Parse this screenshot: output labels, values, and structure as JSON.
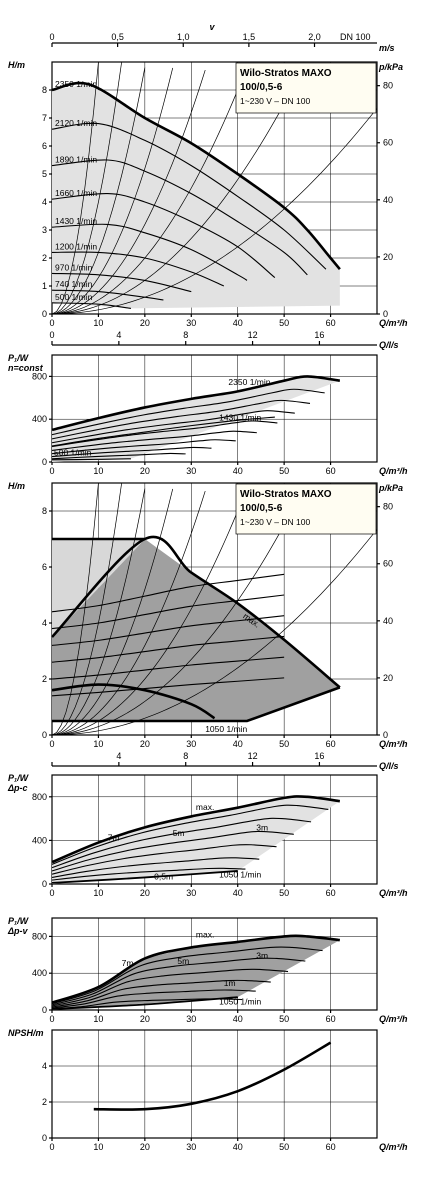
{
  "pump": {
    "title_line1": "Wilo-Stratos MAXO",
    "title_line2": "100/0,5-6",
    "subtitle": "1~230 V – DN 100"
  },
  "units": {
    "v_top": "v",
    "v_unit": "m/s",
    "dn": "DN 100",
    "H": "H/m",
    "p": "p/kPa",
    "Q": "Q/m³/h",
    "Qls": "Q/l/s",
    "P1": "P₁/W",
    "nconst": "n=const",
    "dpc": "Δp-c",
    "dpv": "Δp-v",
    "NPSH": "NPSH/m"
  },
  "chart_data": [
    {
      "id": "H-Q n=const",
      "type": "line",
      "xlabel": "Q/m³/h",
      "ylabel": "H/m",
      "y2label": "p/kPa",
      "xlim": [
        0,
        70
      ],
      "ylim": [
        0,
        9
      ],
      "x_ticks": [
        0,
        10,
        20,
        30,
        40,
        50,
        60
      ],
      "y_ticks": [
        0,
        1,
        2,
        3,
        4,
        5,
        6,
        7,
        8
      ],
      "y2_ticks": [
        0,
        20,
        40,
        60,
        80
      ],
      "top_axis_v_ticks": [
        "0",
        "0,5",
        "1,0",
        "1,5",
        "2,0"
      ],
      "series": [
        {
          "name": "2350 1/min",
          "x": [
            0,
            8,
            20,
            30,
            40,
            50,
            55,
            60,
            62
          ],
          "values": [
            8.0,
            8.2,
            7.0,
            6.1,
            5.0,
            3.8,
            3.0,
            2.0,
            1.6
          ]
        },
        {
          "name": "2120 1/min",
          "x": [
            0,
            10,
            20,
            30,
            40,
            50,
            59
          ],
          "values": [
            6.6,
            6.8,
            6.2,
            5.3,
            4.2,
            3.0,
            1.6
          ]
        },
        {
          "name": "1890 1/min",
          "x": [
            0,
            12,
            20,
            30,
            40,
            50,
            55
          ],
          "values": [
            5.3,
            5.5,
            5.1,
            4.3,
            3.3,
            2.2,
            1.4
          ]
        },
        {
          "name": "1660 1/min",
          "x": [
            0,
            12,
            20,
            30,
            40,
            48
          ],
          "values": [
            4.1,
            4.3,
            4.0,
            3.3,
            2.4,
            1.3
          ]
        },
        {
          "name": "1430 1/min",
          "x": [
            0,
            12,
            20,
            30,
            40,
            42
          ],
          "values": [
            3.1,
            3.2,
            2.9,
            2.3,
            1.4,
            1.2
          ]
        },
        {
          "name": "1200 1/min",
          "x": [
            0,
            10,
            20,
            30,
            37
          ],
          "values": [
            2.2,
            2.2,
            2.0,
            1.5,
            1.0
          ]
        },
        {
          "name": "970 1/min",
          "x": [
            0,
            10,
            20,
            30
          ],
          "values": [
            1.45,
            1.4,
            1.2,
            0.8
          ]
        },
        {
          "name": "740 1/min",
          "x": [
            0,
            10,
            20,
            24
          ],
          "values": [
            0.85,
            0.8,
            0.6,
            0.5
          ]
        },
        {
          "name": "500 1/min",
          "x": [
            0,
            10,
            17
          ],
          "values": [
            0.4,
            0.35,
            0.2
          ]
        }
      ]
    },
    {
      "id": "P1-Q n=const",
      "type": "line",
      "xlabel": "Q/m³/h",
      "ylabel": "P₁/W",
      "xlim": [
        0,
        70
      ],
      "ylim": [
        0,
        1000
      ],
      "x_ticks": [
        0,
        10,
        20,
        30,
        40,
        50,
        60
      ],
      "y_ticks": [
        0,
        400,
        800
      ],
      "top_axis_ls_ticks": [
        "0",
        "4",
        "8",
        "12",
        "16"
      ],
      "series": [
        {
          "name": "2350 1/min",
          "x": [
            0,
            10,
            20,
            30,
            40,
            50,
            55,
            62
          ],
          "values": [
            300,
            410,
            510,
            590,
            660,
            760,
            800,
            760
          ]
        },
        {
          "name": "1430 1/min",
          "x": [
            0,
            10,
            20,
            30,
            40,
            48
          ],
          "values": [
            150,
            220,
            280,
            340,
            390,
            420
          ]
        },
        {
          "name": "500 1/min",
          "x": [
            0,
            10,
            17
          ],
          "values": [
            20,
            25,
            30
          ]
        }
      ]
    },
    {
      "id": "H-Q control range",
      "type": "area",
      "xlabel": "Q/m³/h",
      "ylabel": "H/m",
      "y2label": "p/kPa",
      "xlim": [
        0,
        70
      ],
      "ylim": [
        0,
        9
      ],
      "x_ticks": [
        0,
        10,
        20,
        30,
        40,
        50,
        60
      ],
      "y_ticks": [
        0,
        2,
        4,
        6,
        8
      ],
      "y2_ticks": [
        0,
        20,
        40,
        60,
        80
      ],
      "series": [
        {
          "name": "max.",
          "x": [
            0,
            20,
            30,
            40,
            50,
            62
          ],
          "values": [
            3.5,
            7.0,
            5.8,
            4.7,
            3.4,
            1.7
          ]
        },
        {
          "name": "1050 1/min",
          "x": [
            0,
            20,
            30,
            38
          ],
          "values": [
            0.7,
            0.7,
            0.6,
            0.5
          ]
        }
      ]
    },
    {
      "id": "P1-Q Δp-c",
      "type": "line",
      "xlabel": "Q/m³/h",
      "ylabel": "P₁/W",
      "xlim": [
        0,
        70
      ],
      "ylim": [
        0,
        1000
      ],
      "x_ticks": [
        0,
        10,
        20,
        30,
        40,
        50,
        60
      ],
      "y_ticks": [
        0,
        400,
        800
      ],
      "top_axis_ls_ticks": [
        "4",
        "8",
        "12",
        "16"
      ],
      "series": [
        {
          "name": "max.",
          "x": [
            0,
            10,
            20,
            30,
            40,
            50,
            55,
            62
          ],
          "values": [
            200,
            380,
            520,
            620,
            700,
            790,
            800,
            760
          ]
        },
        {
          "name": "7m",
          "x": [
            0,
            20,
            40
          ],
          "values": [
            120,
            300,
            480
          ]
        },
        {
          "name": "5m",
          "x": [
            0,
            20,
            40
          ],
          "values": [
            80,
            220,
            380
          ]
        },
        {
          "name": "3m",
          "x": [
            0,
            20,
            40
          ],
          "values": [
            50,
            150,
            270
          ]
        },
        {
          "name": "0,5m",
          "x": [
            0,
            20,
            40
          ],
          "values": [
            10,
            40,
            90
          ]
        },
        {
          "name": "1050 1/min",
          "x": [
            0,
            20,
            40
          ],
          "values": [
            10,
            60,
            120
          ]
        }
      ]
    },
    {
      "id": "P1-Q Δp-v",
      "type": "line",
      "xlabel": "Q/m³/h",
      "ylabel": "P₁/W",
      "xlim": [
        0,
        70
      ],
      "ylim": [
        0,
        1000
      ],
      "x_ticks": [
        0,
        10,
        20,
        30,
        40,
        50,
        60
      ],
      "y_ticks": [
        0,
        400,
        800
      ],
      "series": [
        {
          "name": "max.",
          "x": [
            0,
            10,
            20,
            30,
            40,
            50,
            55,
            62
          ],
          "values": [
            80,
            250,
            560,
            680,
            740,
            800,
            800,
            760
          ]
        },
        {
          "name": "7m",
          "x": [
            0,
            20,
            40
          ],
          "values": [
            60,
            300,
            520
          ]
        },
        {
          "name": "5m",
          "x": [
            0,
            20,
            40
          ],
          "values": [
            40,
            200,
            420
          ]
        },
        {
          "name": "3m",
          "x": [
            0,
            20,
            40
          ],
          "values": [
            25,
            130,
            300
          ]
        },
        {
          "name": "1m",
          "x": [
            0,
            20,
            40
          ],
          "values": [
            10,
            60,
            150
          ]
        },
        {
          "name": "1050 1/min",
          "x": [
            0,
            20,
            40
          ],
          "values": [
            10,
            60,
            140
          ]
        }
      ]
    },
    {
      "id": "NPSH",
      "type": "line",
      "xlabel": "Q/m³/h",
      "ylabel": "NPSH/m",
      "xlim": [
        0,
        70
      ],
      "ylim": [
        0,
        6
      ],
      "x_ticks": [
        0,
        10,
        20,
        30,
        40,
        50,
        60
      ],
      "y_ticks": [
        0,
        2,
        4
      ],
      "series": [
        {
          "x": [
            9,
            20,
            30,
            40,
            50,
            60
          ],
          "values": [
            1.6,
            1.6,
            1.9,
            2.6,
            3.8,
            5.3
          ]
        }
      ]
    }
  ]
}
